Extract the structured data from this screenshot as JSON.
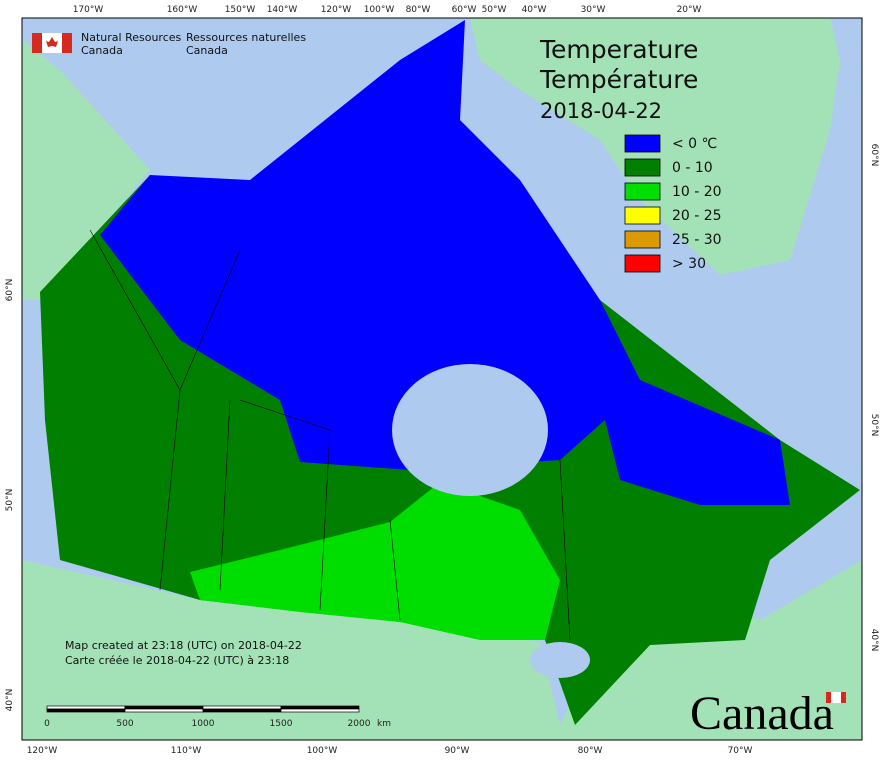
{
  "agency": {
    "en_line1": "Natural Resources",
    "en_line2": "Canada",
    "fr_line1": "Ressources naturelles",
    "fr_line2": "Canada"
  },
  "title": {
    "line1": "Temperature",
    "line2": "Température",
    "date": "2018-04-22"
  },
  "legend": [
    {
      "label": "< 0 ℃",
      "color": "#0000ff"
    },
    {
      "label": "0 - 10",
      "color": "#007f00"
    },
    {
      "label": "10 - 20",
      "color": "#00dd00"
    },
    {
      "label": "20 - 25",
      "color": "#ffff00"
    },
    {
      "label": "25 - 30",
      "color": "#dd9900"
    },
    {
      "label": "> 30",
      "color": "#ff0000"
    }
  ],
  "graticule": {
    "top": [
      "170°W",
      "160°W",
      "150°W",
      "140°W",
      "120°W",
      "100°W",
      "80°W",
      "60°W",
      "50°W",
      "40°W",
      "30°W",
      "20°W"
    ],
    "bottom": [
      "120°W",
      "110°W",
      "100°W",
      "90°W",
      "80°W",
      "70°W"
    ],
    "left": [
      "60°N",
      "50°N",
      "40°N"
    ],
    "right": [
      "60°N",
      "50°N",
      "40°N"
    ]
  },
  "footer": {
    "created_en": "Map created at 23:18 (UTC) on 2018-04-22",
    "created_fr": "Carte créée le 2018-04-22 (UTC) à 23:18"
  },
  "scale_bar": {
    "labels": [
      "0",
      "500",
      "1000",
      "1500",
      "2000"
    ],
    "unit": "km"
  },
  "wordmark": "Canada"
}
